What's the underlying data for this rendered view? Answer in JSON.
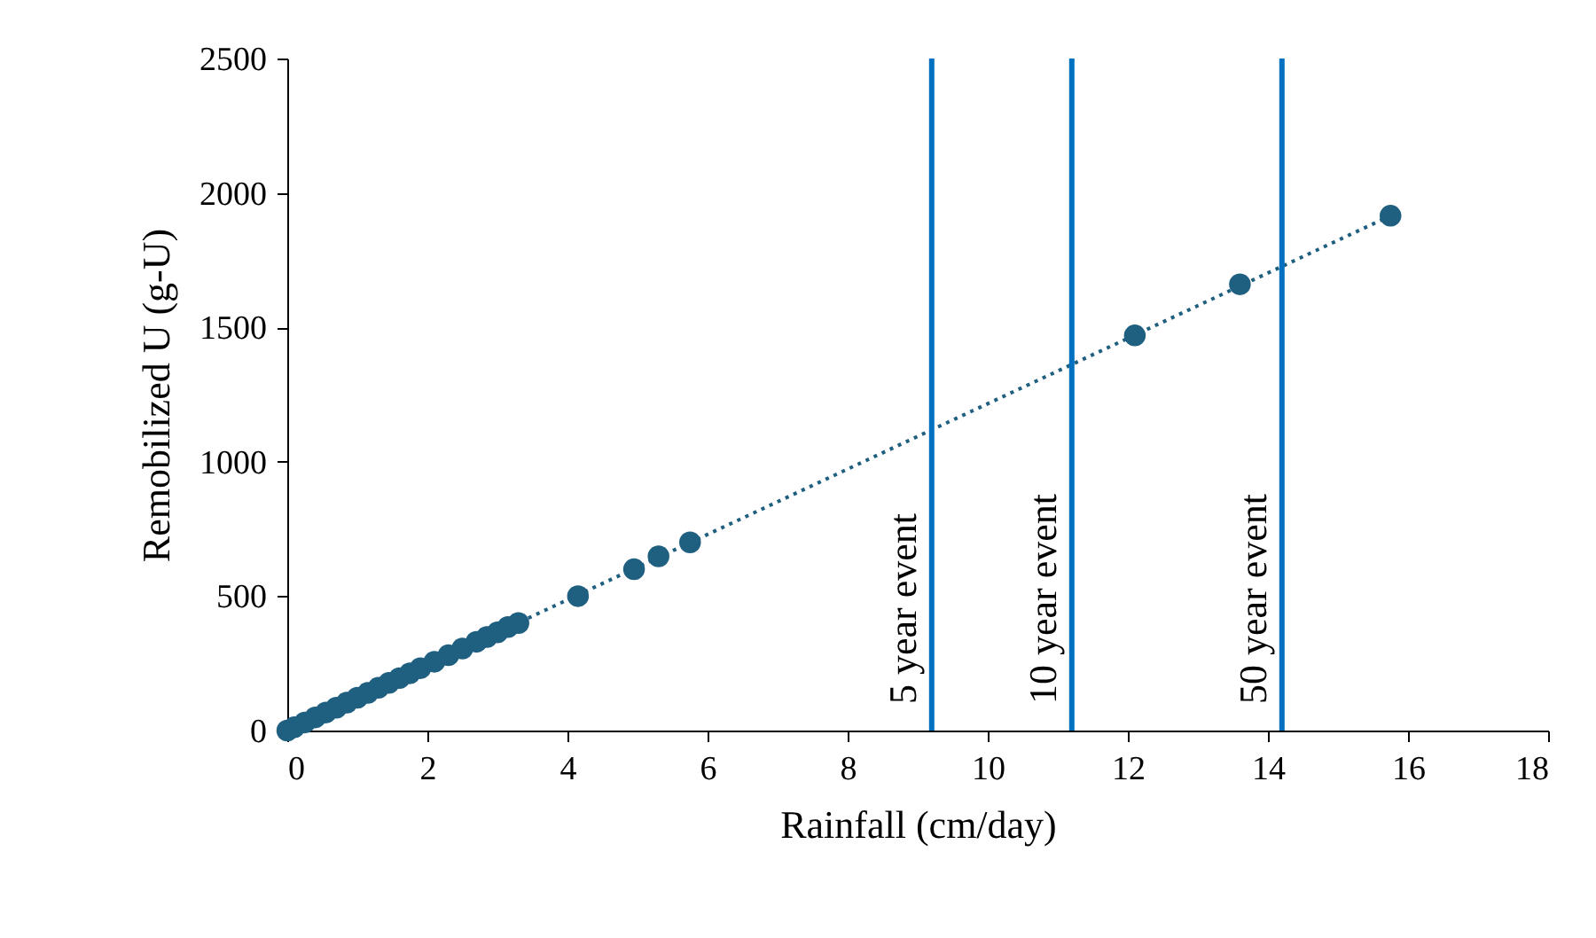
{
  "chart_data": {
    "type": "scatter",
    "xlabel": "Rainfall (cm/day)",
    "ylabel": "Remobilized U (g-U)",
    "xlim": [
      0,
      18
    ],
    "xticks": [
      0,
      2,
      4,
      6,
      8,
      10,
      12,
      14,
      16,
      18
    ],
    "ylim": [
      0,
      2500
    ],
    "yticks": [
      0,
      500,
      1000,
      1500,
      2000,
      2500
    ],
    "grid": false,
    "marker": "circle",
    "series": [
      {
        "color": "#1f5f80",
        "x": [
          0,
          0.1,
          0.25,
          0.4,
          0.55,
          0.7,
          0.85,
          1.0,
          1.15,
          1.3,
          1.45,
          1.6,
          1.75,
          1.9,
          2.1,
          2.3,
          2.5,
          2.7,
          2.85,
          3.0,
          3.15,
          3.3,
          4.15,
          4.95,
          5.3,
          5.75,
          12.1,
          13.6,
          15.75
        ],
        "values": [
          0,
          12,
          30,
          49,
          67,
          85,
          104,
          122,
          140,
          159,
          177,
          195,
          213,
          232,
          256,
          280,
          305,
          330,
          348,
          365,
          385,
          400,
          500,
          600,
          648,
          700,
          1470,
          1660,
          1915
        ]
      },
      {
        "type": "line",
        "marker": "none",
        "color": "#1f5f80",
        "line_style": "dotted",
        "x": [
          0,
          15.75
        ],
        "values": [
          0,
          1915
        ]
      }
    ],
    "ref_lines": [
      {
        "axis": "x",
        "value": 9.2,
        "label": "5 year event",
        "color": "#0070c0"
      },
      {
        "axis": "x",
        "value": 11.2,
        "label": "10 year event",
        "color": "#0070c0"
      },
      {
        "axis": "x",
        "value": 14.2,
        "label": "50 year event",
        "color": "#0070c0"
      }
    ]
  }
}
